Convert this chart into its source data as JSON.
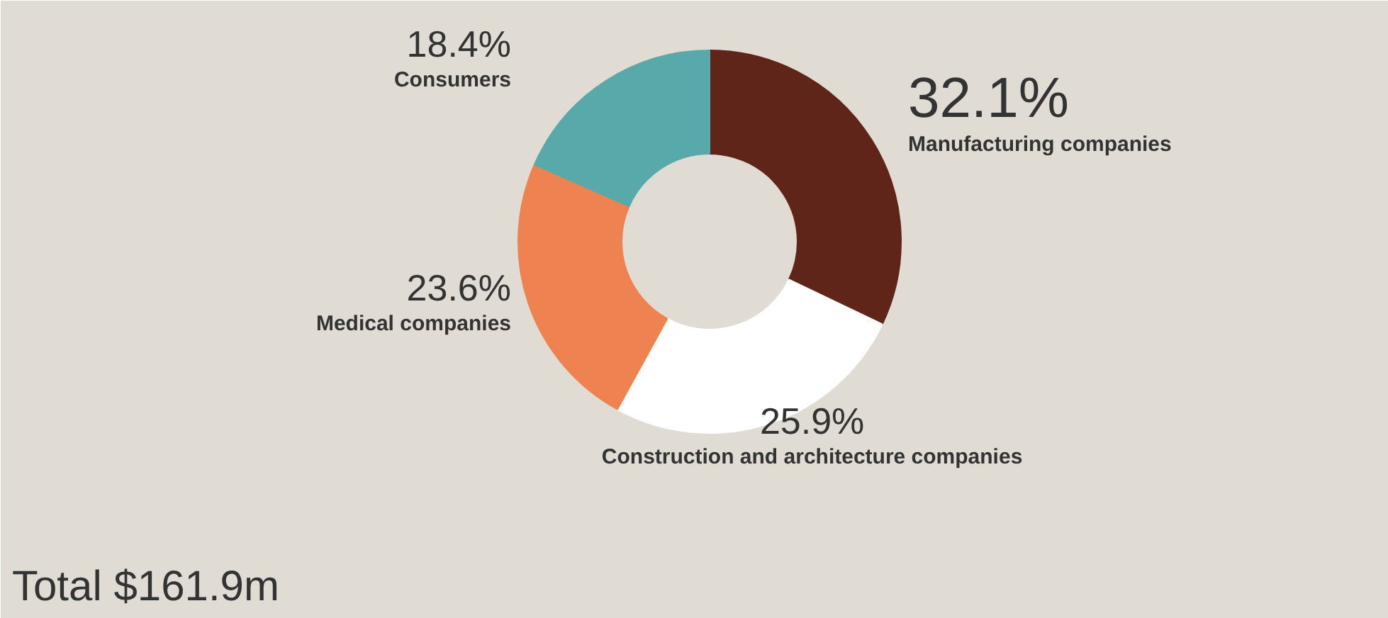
{
  "chart_data": {
    "type": "donut",
    "categories": [
      "Manufacturing companies",
      "Construction and architecture companies",
      "Medical companies",
      "Consumers"
    ],
    "values": [
      32.1,
      25.9,
      23.6,
      18.4
    ],
    "colors": [
      "#5e2518",
      "#ffffff",
      "#ee8250",
      "#57aaa9"
    ],
    "value_labels": [
      "32.1%",
      "25.9%",
      "23.6%",
      "18.4%"
    ],
    "annotations": [
      "Total $161.9m"
    ]
  }
}
